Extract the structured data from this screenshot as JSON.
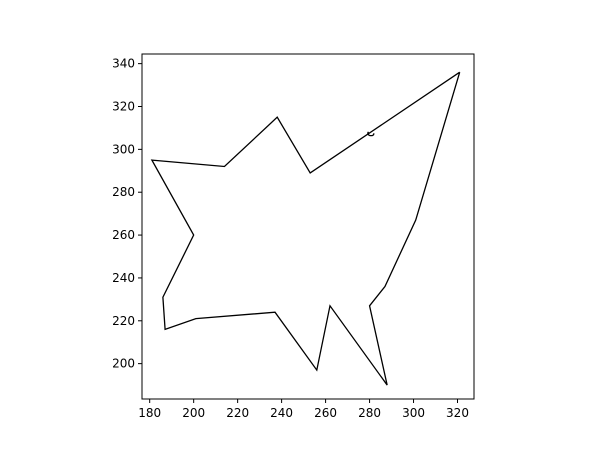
{
  "chart_data": {
    "type": "line",
    "title": "",
    "xlabel": "",
    "ylabel": "",
    "xlim": [
      176.5,
      327.5
    ],
    "ylim": [
      183.5,
      344.5
    ],
    "xticks": [
      180,
      200,
      220,
      240,
      260,
      280,
      300,
      320
    ],
    "yticks": [
      200,
      220,
      240,
      260,
      280,
      300,
      320,
      340
    ],
    "grid": false,
    "legend": "none",
    "line_color": "#000000",
    "series": [
      {
        "points": [
          [
            321,
            336
          ],
          [
            253,
            289
          ],
          [
            238,
            315
          ],
          [
            214,
            292
          ],
          [
            181,
            295
          ],
          [
            200,
            260
          ],
          [
            186,
            231
          ],
          [
            187,
            216
          ],
          [
            201,
            221
          ],
          [
            237,
            224
          ],
          [
            256,
            197
          ],
          [
            262,
            227
          ],
          [
            288,
            190
          ],
          [
            280,
            227
          ],
          [
            287,
            236
          ],
          [
            301,
            267
          ],
          [
            321,
            336
          ]
        ]
      },
      {
        "points": [
          [
            282.0,
            307.5
          ],
          [
            281.8,
            306.8
          ],
          [
            281.2,
            306.4
          ],
          [
            280.2,
            306.4
          ],
          [
            279.5,
            306.8
          ],
          [
            279.2,
            307.6
          ],
          [
            279.5,
            308.2
          ]
        ]
      }
    ]
  }
}
